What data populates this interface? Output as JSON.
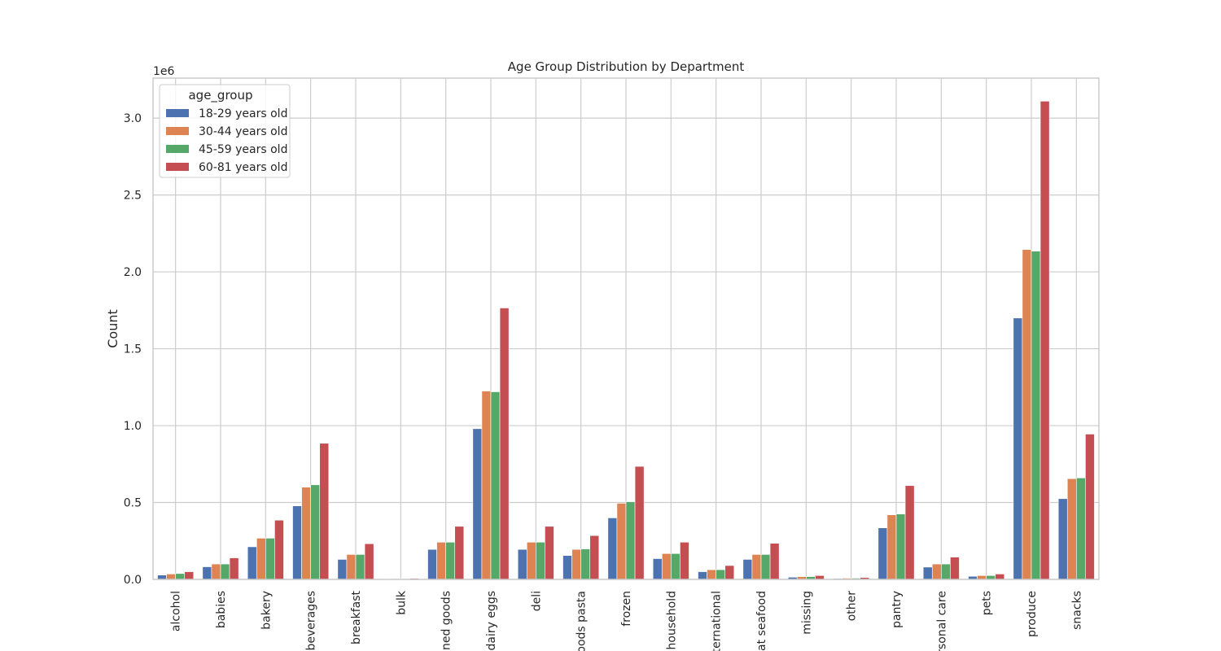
{
  "chart_data": {
    "type": "bar",
    "title": "Age Group Distribution by Department",
    "xlabel": "",
    "ylabel": "Count",
    "y_scale_label": "1e6",
    "y_unit_multiplier": 1000000,
    "ylim": [
      0,
      3.26
    ],
    "yticks": [
      0.0,
      0.5,
      1.0,
      1.5,
      2.0,
      2.5,
      3.0
    ],
    "ytick_labels": [
      "0.0",
      "0.5",
      "1.0",
      "1.5",
      "2.0",
      "2.5",
      "3.0"
    ],
    "grid": true,
    "legend": {
      "title": "age_group",
      "placement": "top-left"
    },
    "categories": [
      "alcohol",
      "babies",
      "bakery",
      "beverages",
      "breakfast",
      "bulk",
      "canned goods",
      "dairy eggs",
      "deli",
      "dry goods pasta",
      "frozen",
      "household",
      "international",
      "meat seafood",
      "missing",
      "other",
      "pantry",
      "personal care",
      "pets",
      "produce",
      "snacks"
    ],
    "category_labels_visible": [
      "alcohol",
      "babies",
      "bakery",
      "beverages",
      "breakfast",
      "bulk",
      "nned goods",
      "dairy eggs",
      "deli",
      "oods pasta",
      "frozen",
      "household",
      "ternational",
      "eat seafood",
      "missing",
      "other",
      "pantry",
      "ersonal care",
      "pets",
      "produce",
      "snacks"
    ],
    "series": [
      {
        "name": "18-29 years old",
        "color": "#4c72b0",
        "values": [
          0.028,
          0.082,
          0.212,
          0.478,
          0.13,
          0.004,
          0.195,
          0.98,
          0.195,
          0.155,
          0.4,
          0.135,
          0.05,
          0.13,
          0.014,
          0.006,
          0.335,
          0.08,
          0.02,
          1.7,
          0.525
        ]
      },
      {
        "name": "30-44 years old",
        "color": "#dd8452",
        "values": [
          0.035,
          0.1,
          0.268,
          0.6,
          0.162,
          0.005,
          0.242,
          1.225,
          0.242,
          0.195,
          0.495,
          0.168,
          0.063,
          0.162,
          0.018,
          0.008,
          0.42,
          0.1,
          0.025,
          2.145,
          0.655
        ]
      },
      {
        "name": "45-59 years old",
        "color": "#55a868",
        "values": [
          0.038,
          0.1,
          0.268,
          0.615,
          0.162,
          0.005,
          0.242,
          1.22,
          0.242,
          0.198,
          0.505,
          0.168,
          0.063,
          0.162,
          0.018,
          0.008,
          0.425,
          0.1,
          0.025,
          2.135,
          0.66
        ]
      },
      {
        "name": "60-81 years old",
        "color": "#c44e52",
        "values": [
          0.05,
          0.14,
          0.385,
          0.885,
          0.232,
          0.007,
          0.345,
          1.765,
          0.345,
          0.285,
          0.735,
          0.242,
          0.09,
          0.235,
          0.025,
          0.012,
          0.61,
          0.145,
          0.035,
          3.11,
          0.945
        ]
      }
    ]
  }
}
